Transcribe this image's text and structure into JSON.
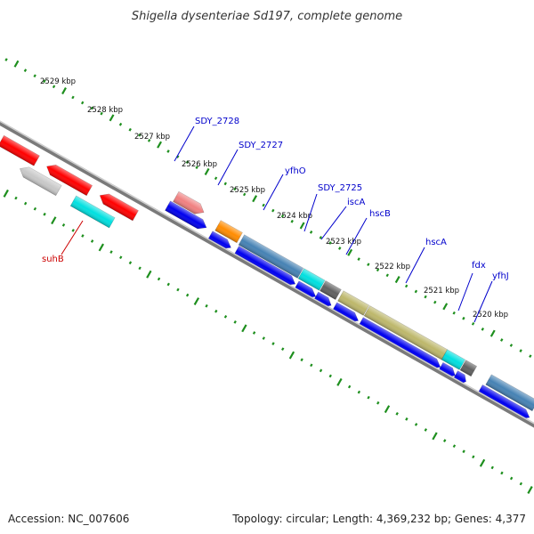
{
  "title": "Shigella dysenteriae Sd197, complete genome",
  "accession": "Accession: NC_007606",
  "summary": "Topology: circular; Length: 4,369,232 bp; Genes: 4,377",
  "colors": {
    "backbone": "#7a7a7a",
    "tick": "#1e8f1e",
    "label_fwd": "#0000cc",
    "label_rev": "#cc0000",
    "cds_blue": "#0000ee",
    "red": "#ff0000",
    "orange": "#ff8c00",
    "gray": "#c8c8c8",
    "cyan": "#00e0e0",
    "pink": "#f08080",
    "steel": "#4682b4",
    "khaki": "#bdb76b",
    "darkgray": "#606060"
  },
  "ticks": [
    {
      "label": "2529 kbp"
    },
    {
      "label": "2528 kbp"
    },
    {
      "label": "2527 kbp"
    },
    {
      "label": "2526 kbp"
    },
    {
      "label": "2525 kbp"
    },
    {
      "label": "2524 kbp"
    },
    {
      "label": "2523 kbp"
    },
    {
      "label": "2522 kbp"
    },
    {
      "label": "2521 kbp"
    },
    {
      "label": "2520 kbp"
    }
  ],
  "gene_labels": [
    {
      "text": "SDY_2728",
      "strand": "forward"
    },
    {
      "text": "SDY_2727",
      "strand": "forward"
    },
    {
      "text": "yfhO",
      "strand": "forward"
    },
    {
      "text": "SDY_2725",
      "strand": "forward"
    },
    {
      "text": "iscA",
      "strand": "forward"
    },
    {
      "text": "hscB",
      "strand": "forward"
    },
    {
      "text": "hscA",
      "strand": "forward"
    },
    {
      "text": "fdx",
      "strand": "forward"
    },
    {
      "text": "yfhJ",
      "strand": "forward"
    },
    {
      "text": "suhB",
      "strand": "reverse"
    }
  ]
}
